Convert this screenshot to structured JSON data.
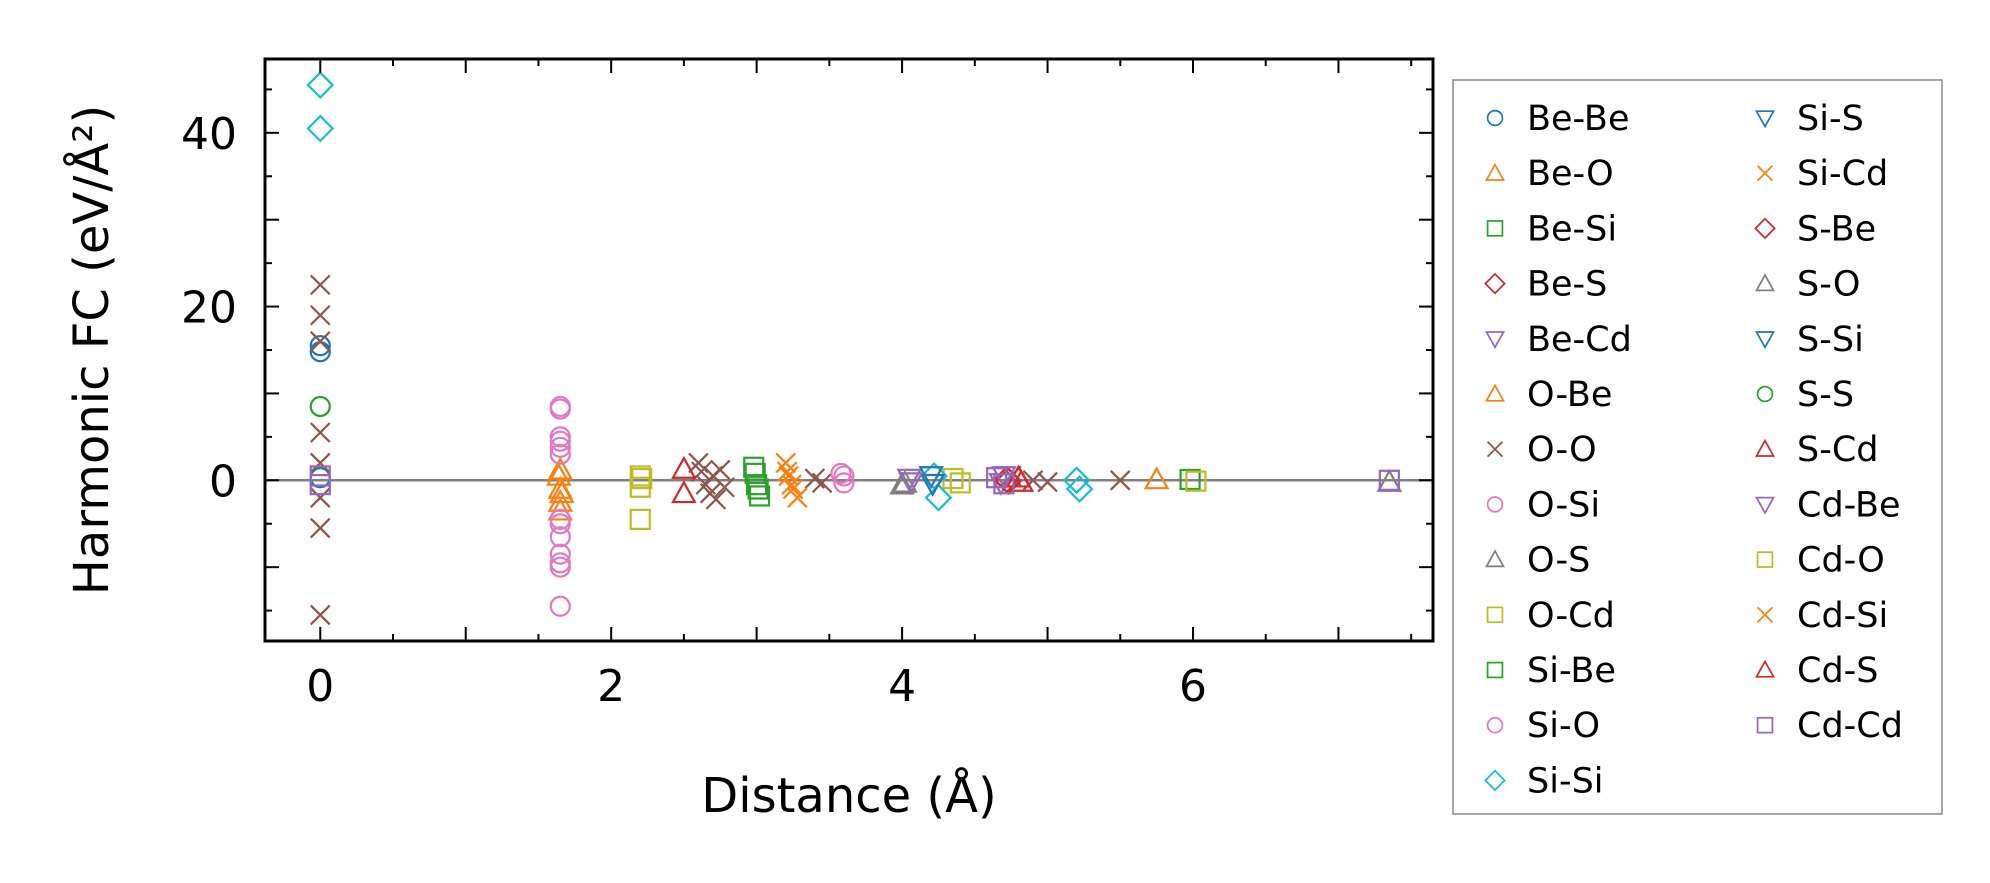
{
  "chart_data": {
    "type": "scatter",
    "title": "",
    "xlabel": "Distance (Å)",
    "ylabel": "Harmonic FC (eV/Å²)",
    "xlim": [
      -0.38,
      7.65
    ],
    "ylim": [
      -18.5,
      48.5
    ],
    "xticks": [
      0,
      2,
      4,
      6
    ],
    "yticks": [
      0,
      20,
      40
    ],
    "xtick_labels": [
      "0",
      "2",
      "4",
      "6"
    ],
    "ytick_labels": [
      "0",
      "20",
      "40"
    ],
    "minor_tick_step_x": 0.5,
    "minor_tick_step_y": 5,
    "zero_line": true,
    "grid": false,
    "legend_position": "outside-right",
    "legend_columns": 2,
    "marker_fill": "none",
    "series": [
      {
        "name": "Be-Be",
        "marker": "circle",
        "color": "#1f77b4",
        "points": [
          [
            0,
            15.5
          ],
          [
            0,
            14.8
          ],
          [
            0,
            0.3
          ]
        ]
      },
      {
        "name": "Be-O",
        "marker": "triangle-up",
        "color": "#ff7f0e",
        "points": [
          [
            1.65,
            1.2
          ],
          [
            1.65,
            -1.0
          ],
          [
            1.65,
            -2.5
          ],
          [
            5.75,
            0.1
          ]
        ]
      },
      {
        "name": "Be-Si",
        "marker": "square",
        "color": "#2ca02c",
        "points": [
          [
            2.98,
            1.5
          ],
          [
            3.0,
            -0.5
          ],
          [
            3.02,
            -1.8
          ],
          [
            5.98,
            0.1
          ]
        ]
      },
      {
        "name": "Be-S",
        "marker": "diamond",
        "color": "#d62728",
        "points": [
          [
            4.72,
            0.1
          ]
        ]
      },
      {
        "name": "Be-Cd",
        "marker": "triangle-down",
        "color": "#9467bd",
        "points": [
          [
            4.05,
            0.2
          ],
          [
            4.68,
            -0.3
          ]
        ]
      },
      {
        "name": "O-Be",
        "marker": "triangle-up",
        "color": "#ff7f0e",
        "points": [
          [
            1.64,
            0.5
          ],
          [
            1.66,
            -1.5
          ],
          [
            1.65,
            -3.5
          ]
        ]
      },
      {
        "name": "O-O",
        "marker": "x",
        "color": "#8c564b",
        "points": [
          [
            0,
            22.5
          ],
          [
            0,
            19.0
          ],
          [
            0,
            16.0
          ],
          [
            0,
            5.5
          ],
          [
            0,
            2.0
          ],
          [
            0,
            -2.0
          ],
          [
            0,
            -5.5
          ],
          [
            0,
            -15.5
          ],
          [
            2.6,
            2.0
          ],
          [
            2.62,
            1.0
          ],
          [
            2.65,
            -0.5
          ],
          [
            2.68,
            -1.5
          ],
          [
            2.7,
            0.5
          ],
          [
            2.72,
            -2.2
          ],
          [
            2.75,
            1.2
          ],
          [
            2.78,
            -0.8
          ],
          [
            3.4,
            0.2
          ],
          [
            3.45,
            -0.3
          ],
          [
            4.75,
            0.5
          ],
          [
            4.9,
            0.0
          ],
          [
            5.0,
            -0.2
          ],
          [
            5.5,
            0.0
          ]
        ]
      },
      {
        "name": "O-Si",
        "marker": "circle",
        "color": "#e377c2",
        "points": [
          [
            1.65,
            8.2
          ],
          [
            1.65,
            4.5
          ],
          [
            1.65,
            3.0
          ],
          [
            1.65,
            -4.5
          ],
          [
            1.65,
            -6.5
          ],
          [
            1.65,
            -8.5
          ],
          [
            1.65,
            -10.0
          ],
          [
            1.65,
            -14.5
          ],
          [
            3.58,
            0.8
          ],
          [
            3.6,
            -0.3
          ]
        ]
      },
      {
        "name": "O-S",
        "marker": "triangle-up",
        "color": "#7f7f7f",
        "points": [
          [
            4.0,
            -0.5
          ]
        ]
      },
      {
        "name": "O-Cd",
        "marker": "square",
        "color": "#bcbd22",
        "points": [
          [
            2.2,
            0.5
          ],
          [
            2.2,
            -0.8
          ],
          [
            2.2,
            -4.5
          ],
          [
            4.35,
            0.2
          ]
        ]
      },
      {
        "name": "Si-Be",
        "marker": "square",
        "color": "#2ca02c",
        "points": [
          [
            2.99,
            0.8
          ],
          [
            3.01,
            -1.0
          ]
        ]
      },
      {
        "name": "Si-O",
        "marker": "circle",
        "color": "#e377c2",
        "points": [
          [
            1.65,
            8.5
          ],
          [
            1.65,
            5.0
          ],
          [
            1.65,
            3.8
          ],
          [
            1.65,
            -5.0
          ],
          [
            1.65,
            -9.5
          ],
          [
            3.6,
            0.5
          ]
        ]
      },
      {
        "name": "Si-Si",
        "marker": "diamond",
        "color": "#17becf",
        "points": [
          [
            0,
            45.5
          ],
          [
            0,
            40.5
          ],
          [
            4.22,
            0.5
          ],
          [
            4.25,
            -2.0
          ],
          [
            5.2,
            0.0
          ],
          [
            5.22,
            -1.0
          ]
        ]
      },
      {
        "name": "Si-S",
        "marker": "triangle-down",
        "color": "#1f77b4",
        "points": [
          [
            4.2,
            0.5
          ]
        ]
      },
      {
        "name": "Si-Cd",
        "marker": "x",
        "color": "#ff7f0e",
        "points": [
          [
            3.2,
            2.0
          ],
          [
            3.22,
            0.5
          ],
          [
            3.25,
            -1.0
          ],
          [
            3.28,
            -2.0
          ]
        ]
      },
      {
        "name": "S-Be",
        "marker": "diamond",
        "color": "#d62728",
        "points": [
          [
            4.73,
            -0.1
          ]
        ]
      },
      {
        "name": "S-O",
        "marker": "triangle-up",
        "color": "#7f7f7f",
        "points": [
          [
            4.02,
            -0.3
          ],
          [
            7.35,
            -0.2
          ]
        ]
      },
      {
        "name": "S-Si",
        "marker": "triangle-down",
        "color": "#1f77b4",
        "points": [
          [
            4.21,
            -0.4
          ]
        ]
      },
      {
        "name": "S-S",
        "marker": "circle",
        "color": "#2ca02c",
        "points": [
          [
            0,
            8.5
          ]
        ]
      },
      {
        "name": "S-Cd",
        "marker": "triangle-up",
        "color": "#d62728",
        "points": [
          [
            2.5,
            1.3
          ],
          [
            2.5,
            -1.5
          ],
          [
            4.8,
            0.3
          ]
        ]
      },
      {
        "name": "Cd-Be",
        "marker": "triangle-down",
        "color": "#9467bd",
        "points": [
          [
            4.06,
            -0.2
          ],
          [
            4.7,
            0.5
          ]
        ]
      },
      {
        "name": "Cd-O",
        "marker": "square",
        "color": "#bcbd22",
        "points": [
          [
            2.21,
            0.2
          ],
          [
            4.4,
            -0.3
          ],
          [
            6.02,
            -0.1
          ]
        ]
      },
      {
        "name": "Cd-Si",
        "marker": "x",
        "color": "#ff7f0e",
        "points": [
          [
            3.21,
            1.0
          ],
          [
            3.24,
            -0.5
          ]
        ]
      },
      {
        "name": "Cd-S",
        "marker": "triangle-up",
        "color": "#d62728",
        "points": [
          [
            4.82,
            -0.2
          ]
        ]
      },
      {
        "name": "Cd-Cd",
        "marker": "square",
        "color": "#9467bd",
        "points": [
          [
            0,
            0.5
          ],
          [
            0,
            -0.5
          ],
          [
            4.65,
            0.3
          ],
          [
            4.7,
            -0.4
          ],
          [
            7.35,
            0.0
          ]
        ]
      }
    ]
  }
}
